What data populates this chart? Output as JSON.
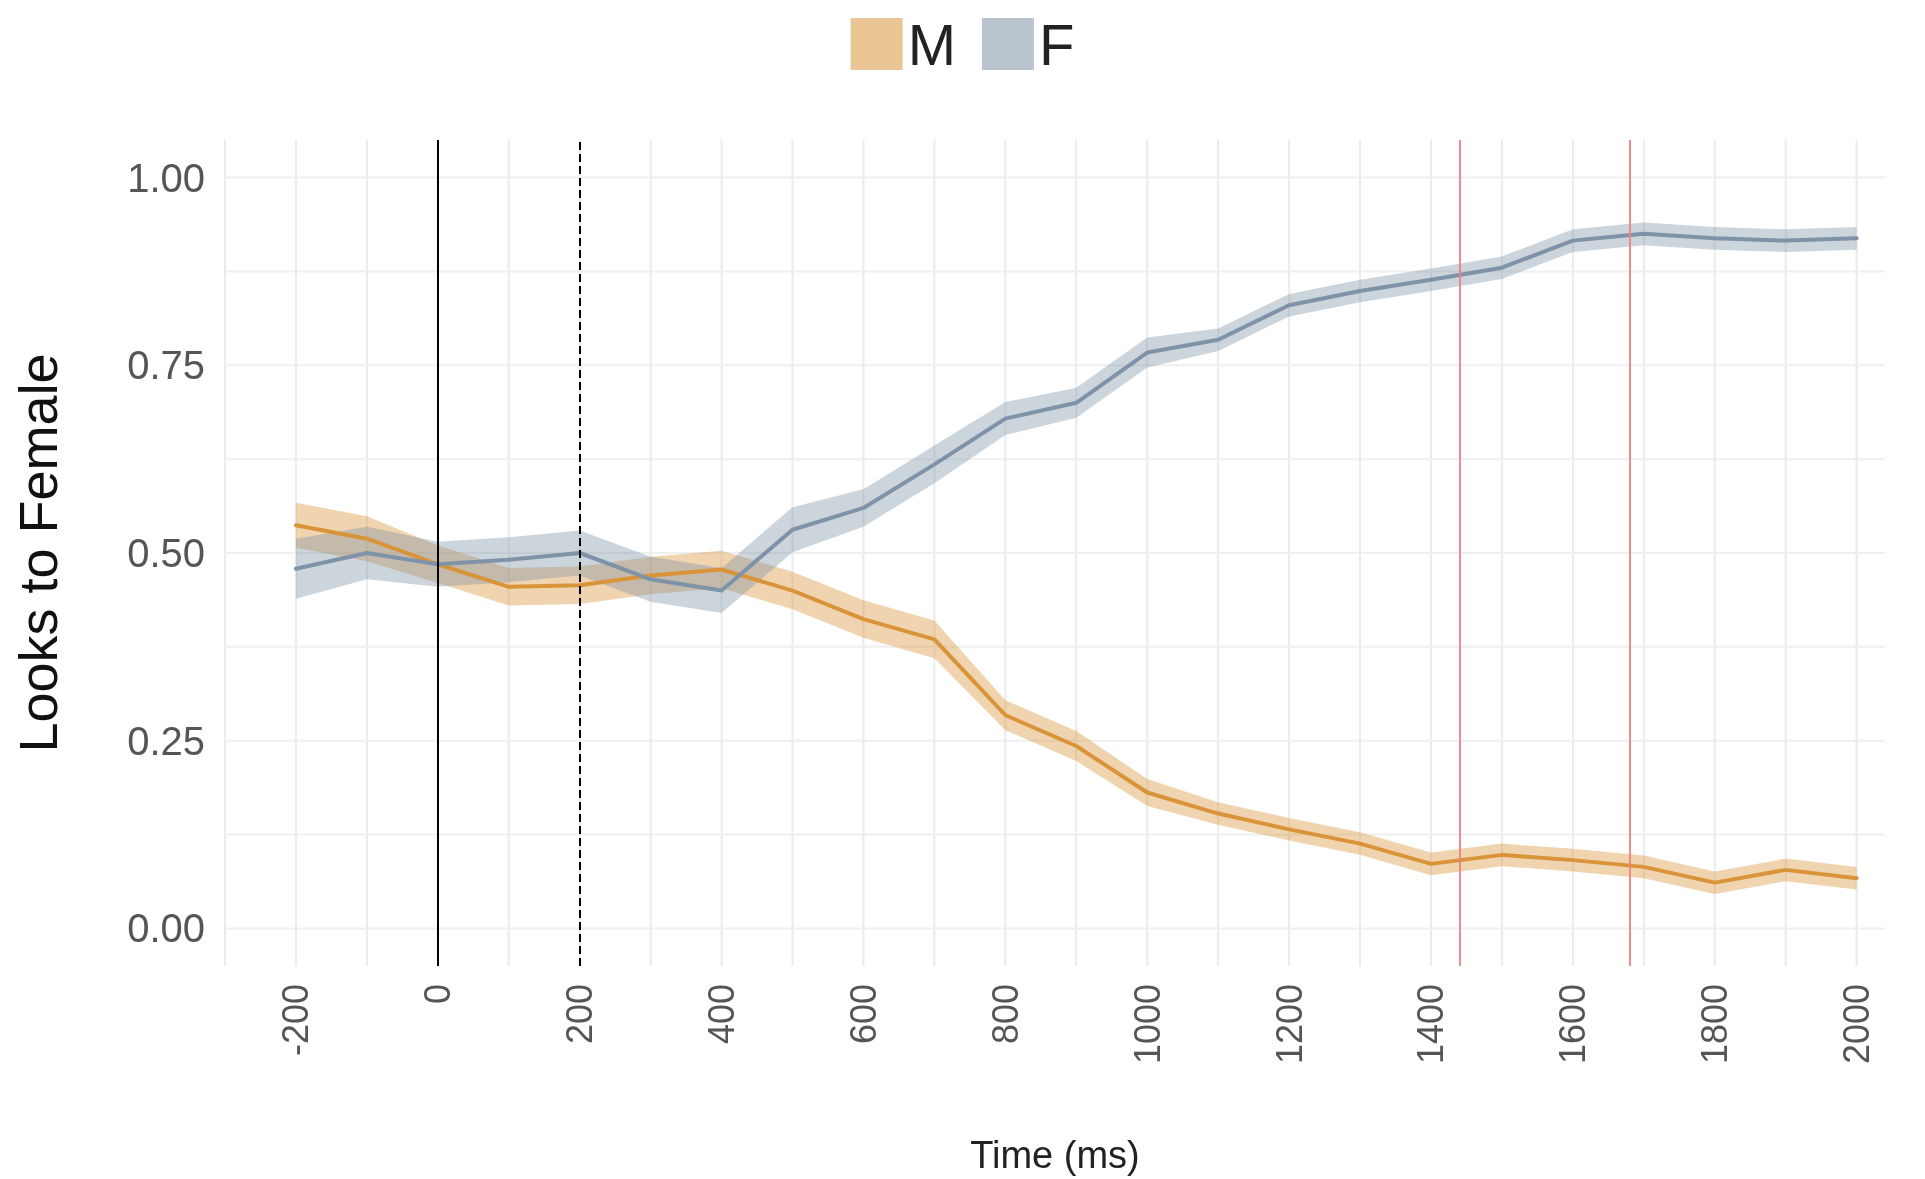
{
  "chart_data": {
    "type": "line",
    "xlabel": "Time (ms)",
    "ylabel": "Looks to Female",
    "x": [
      -200,
      -100,
      0,
      100,
      200,
      300,
      400,
      500,
      600,
      700,
      800,
      900,
      1000,
      1100,
      1200,
      1300,
      1400,
      1500,
      1600,
      1700,
      1800,
      1900,
      2000
    ],
    "series": [
      {
        "name": "M",
        "color": "#d9943a",
        "values": [
          0.537,
          0.519,
          0.485,
          0.455,
          0.457,
          0.47,
          0.478,
          0.45,
          0.412,
          0.385,
          0.284,
          0.243,
          0.181,
          0.153,
          0.132,
          0.113,
          0.086,
          0.098,
          0.091,
          0.082,
          0.061,
          0.078,
          0.067
        ],
        "lower": [
          0.507,
          0.489,
          0.46,
          0.43,
          0.432,
          0.445,
          0.453,
          0.425,
          0.387,
          0.36,
          0.264,
          0.223,
          0.163,
          0.138,
          0.117,
          0.098,
          0.071,
          0.083,
          0.076,
          0.067,
          0.046,
          0.063,
          0.052
        ],
        "upper": [
          0.567,
          0.549,
          0.51,
          0.48,
          0.482,
          0.495,
          0.503,
          0.475,
          0.437,
          0.41,
          0.304,
          0.263,
          0.199,
          0.168,
          0.147,
          0.128,
          0.101,
          0.113,
          0.106,
          0.097,
          0.076,
          0.093,
          0.082
        ]
      },
      {
        "name": "F",
        "color": "#7f93a8",
        "values": [
          0.479,
          0.5,
          0.485,
          0.491,
          0.5,
          0.465,
          0.45,
          0.531,
          0.56,
          0.618,
          0.679,
          0.7,
          0.767,
          0.784,
          0.83,
          0.849,
          0.864,
          0.88,
          0.916,
          0.925,
          0.919,
          0.916,
          0.919
        ],
        "lower": [
          0.439,
          0.465,
          0.455,
          0.461,
          0.47,
          0.435,
          0.42,
          0.501,
          0.535,
          0.593,
          0.657,
          0.68,
          0.747,
          0.769,
          0.815,
          0.834,
          0.849,
          0.865,
          0.901,
          0.91,
          0.904,
          0.901,
          0.904
        ],
        "upper": [
          0.519,
          0.535,
          0.515,
          0.521,
          0.53,
          0.495,
          0.48,
          0.561,
          0.585,
          0.643,
          0.701,
          0.72,
          0.787,
          0.799,
          0.845,
          0.864,
          0.879,
          0.895,
          0.931,
          0.94,
          0.934,
          0.931,
          0.934
        ]
      }
    ],
    "xlim": [
      -300,
      2040
    ],
    "xticks": [
      {
        "value": -300,
        "label": null
      },
      -200,
      {
        "value": -100,
        "label": null
      },
      0,
      {
        "value": 100,
        "label": null
      },
      200,
      {
        "value": 300,
        "label": null
      },
      400,
      {
        "value": 500,
        "label": null
      },
      600,
      {
        "value": 700,
        "label": null
      },
      800,
      {
        "value": 900,
        "label": null
      },
      1000,
      {
        "value": 1100,
        "label": null
      },
      1200,
      {
        "value": 1300,
        "label": null
      },
      1400,
      {
        "value": 1500,
        "label": null
      },
      1600,
      {
        "value": 1700,
        "label": null
      },
      1800,
      {
        "value": 1900,
        "label": null
      },
      2000
    ],
    "ylim": [
      -0.05,
      1.05
    ],
    "yticks": [
      {
        "value": 0,
        "label": "0.00"
      },
      {
        "value": 0.125,
        "label": null
      },
      {
        "value": 0.25,
        "label": "0.25"
      },
      {
        "value": 0.375,
        "label": null
      },
      {
        "value": 0.5,
        "label": "0.50"
      },
      {
        "value": 0.625,
        "label": null
      },
      {
        "value": 0.75,
        "label": "0.75"
      },
      {
        "value": 0.875,
        "label": null
      },
      {
        "value": 1,
        "label": "1.00"
      }
    ],
    "ref_lines": [
      {
        "axis": "x",
        "value": 0,
        "color": "#000000",
        "line_style": "solid"
      },
      {
        "axis": "x",
        "value": 200,
        "color": "#000000",
        "line_style": "dashed"
      },
      {
        "axis": "x",
        "value": 1440,
        "color": "#f08080",
        "line_style": "solid"
      },
      {
        "axis": "x",
        "value": 1680,
        "color": "#f08080",
        "line_style": "solid"
      }
    ],
    "grid": true,
    "legend": "top",
    "marker": "none",
    "line_style": "solid"
  }
}
